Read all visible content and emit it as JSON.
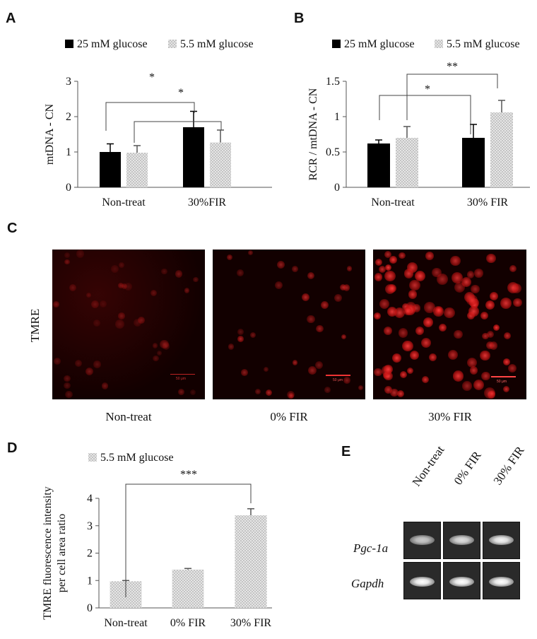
{
  "panels": {
    "A": "A",
    "B": "B",
    "C": "C",
    "D": "D",
    "E": "E"
  },
  "colors": {
    "glucose25": "#000000",
    "glucose55": "#d9d9d9",
    "fluorescence": "#ff2a2a",
    "background_micro": "#120000"
  },
  "chart_data": [
    {
      "panel": "A",
      "type": "bar",
      "categories": [
        "Non-treat",
        "30%FIR"
      ],
      "series": [
        {
          "name": "25 mM glucose",
          "values": [
            1.0,
            1.7
          ],
          "errors": [
            0.23,
            0.45
          ]
        },
        {
          "name": "5.5 mM glucose",
          "values": [
            0.98,
            1.27
          ],
          "errors": [
            0.2,
            0.35
          ]
        }
      ],
      "ylabel": "mtDNA - CN",
      "ylim": [
        0,
        3
      ],
      "yticks": [
        "0",
        "1",
        "2",
        "3"
      ],
      "legend": "top",
      "annotations": [
        "*",
        "*"
      ]
    },
    {
      "panel": "B",
      "type": "bar",
      "categories": [
        "Non-treat",
        "30% FIR"
      ],
      "series": [
        {
          "name": "25 mM glucose",
          "values": [
            0.62,
            0.7
          ],
          "errors": [
            0.05,
            0.19
          ]
        },
        {
          "name": "5.5 mM glucose",
          "values": [
            0.7,
            1.06
          ],
          "errors": [
            0.16,
            0.17
          ]
        }
      ],
      "ylabel": "RCR / mtDNA - CN",
      "ylim": [
        0,
        1.5
      ],
      "yticks": [
        "0",
        "0.5",
        "1",
        "1.5"
      ],
      "legend": "top",
      "annotations": [
        "*",
        "**"
      ]
    },
    {
      "panel": "D",
      "type": "bar",
      "categories": [
        "Non-treat",
        "0% FIR",
        "30% FIR"
      ],
      "series": [
        {
          "name": "5.5 mM glucose",
          "values": [
            0.97,
            1.4,
            3.38
          ],
          "errors": [
            0.03,
            0.04,
            0.24
          ]
        }
      ],
      "ylabel_line1": "TMRE fluorescence intensity",
      "ylabel_line2": "per cell area ratio",
      "ylim": [
        0,
        4
      ],
      "yticks": [
        "0",
        "1",
        "2",
        "3",
        "4"
      ],
      "legend": "top",
      "annotations": [
        "***"
      ]
    }
  ],
  "micrographs": {
    "row_label": "TMRE",
    "labels": [
      "Non-treat",
      "0% FIR",
      "30% FIR"
    ],
    "scale_bar": "50 μm"
  },
  "gel": {
    "lanes": [
      "Non-treat",
      "0% FIR",
      "30% FIR"
    ],
    "rows": [
      "Pgc-1a",
      "Gapdh"
    ]
  }
}
